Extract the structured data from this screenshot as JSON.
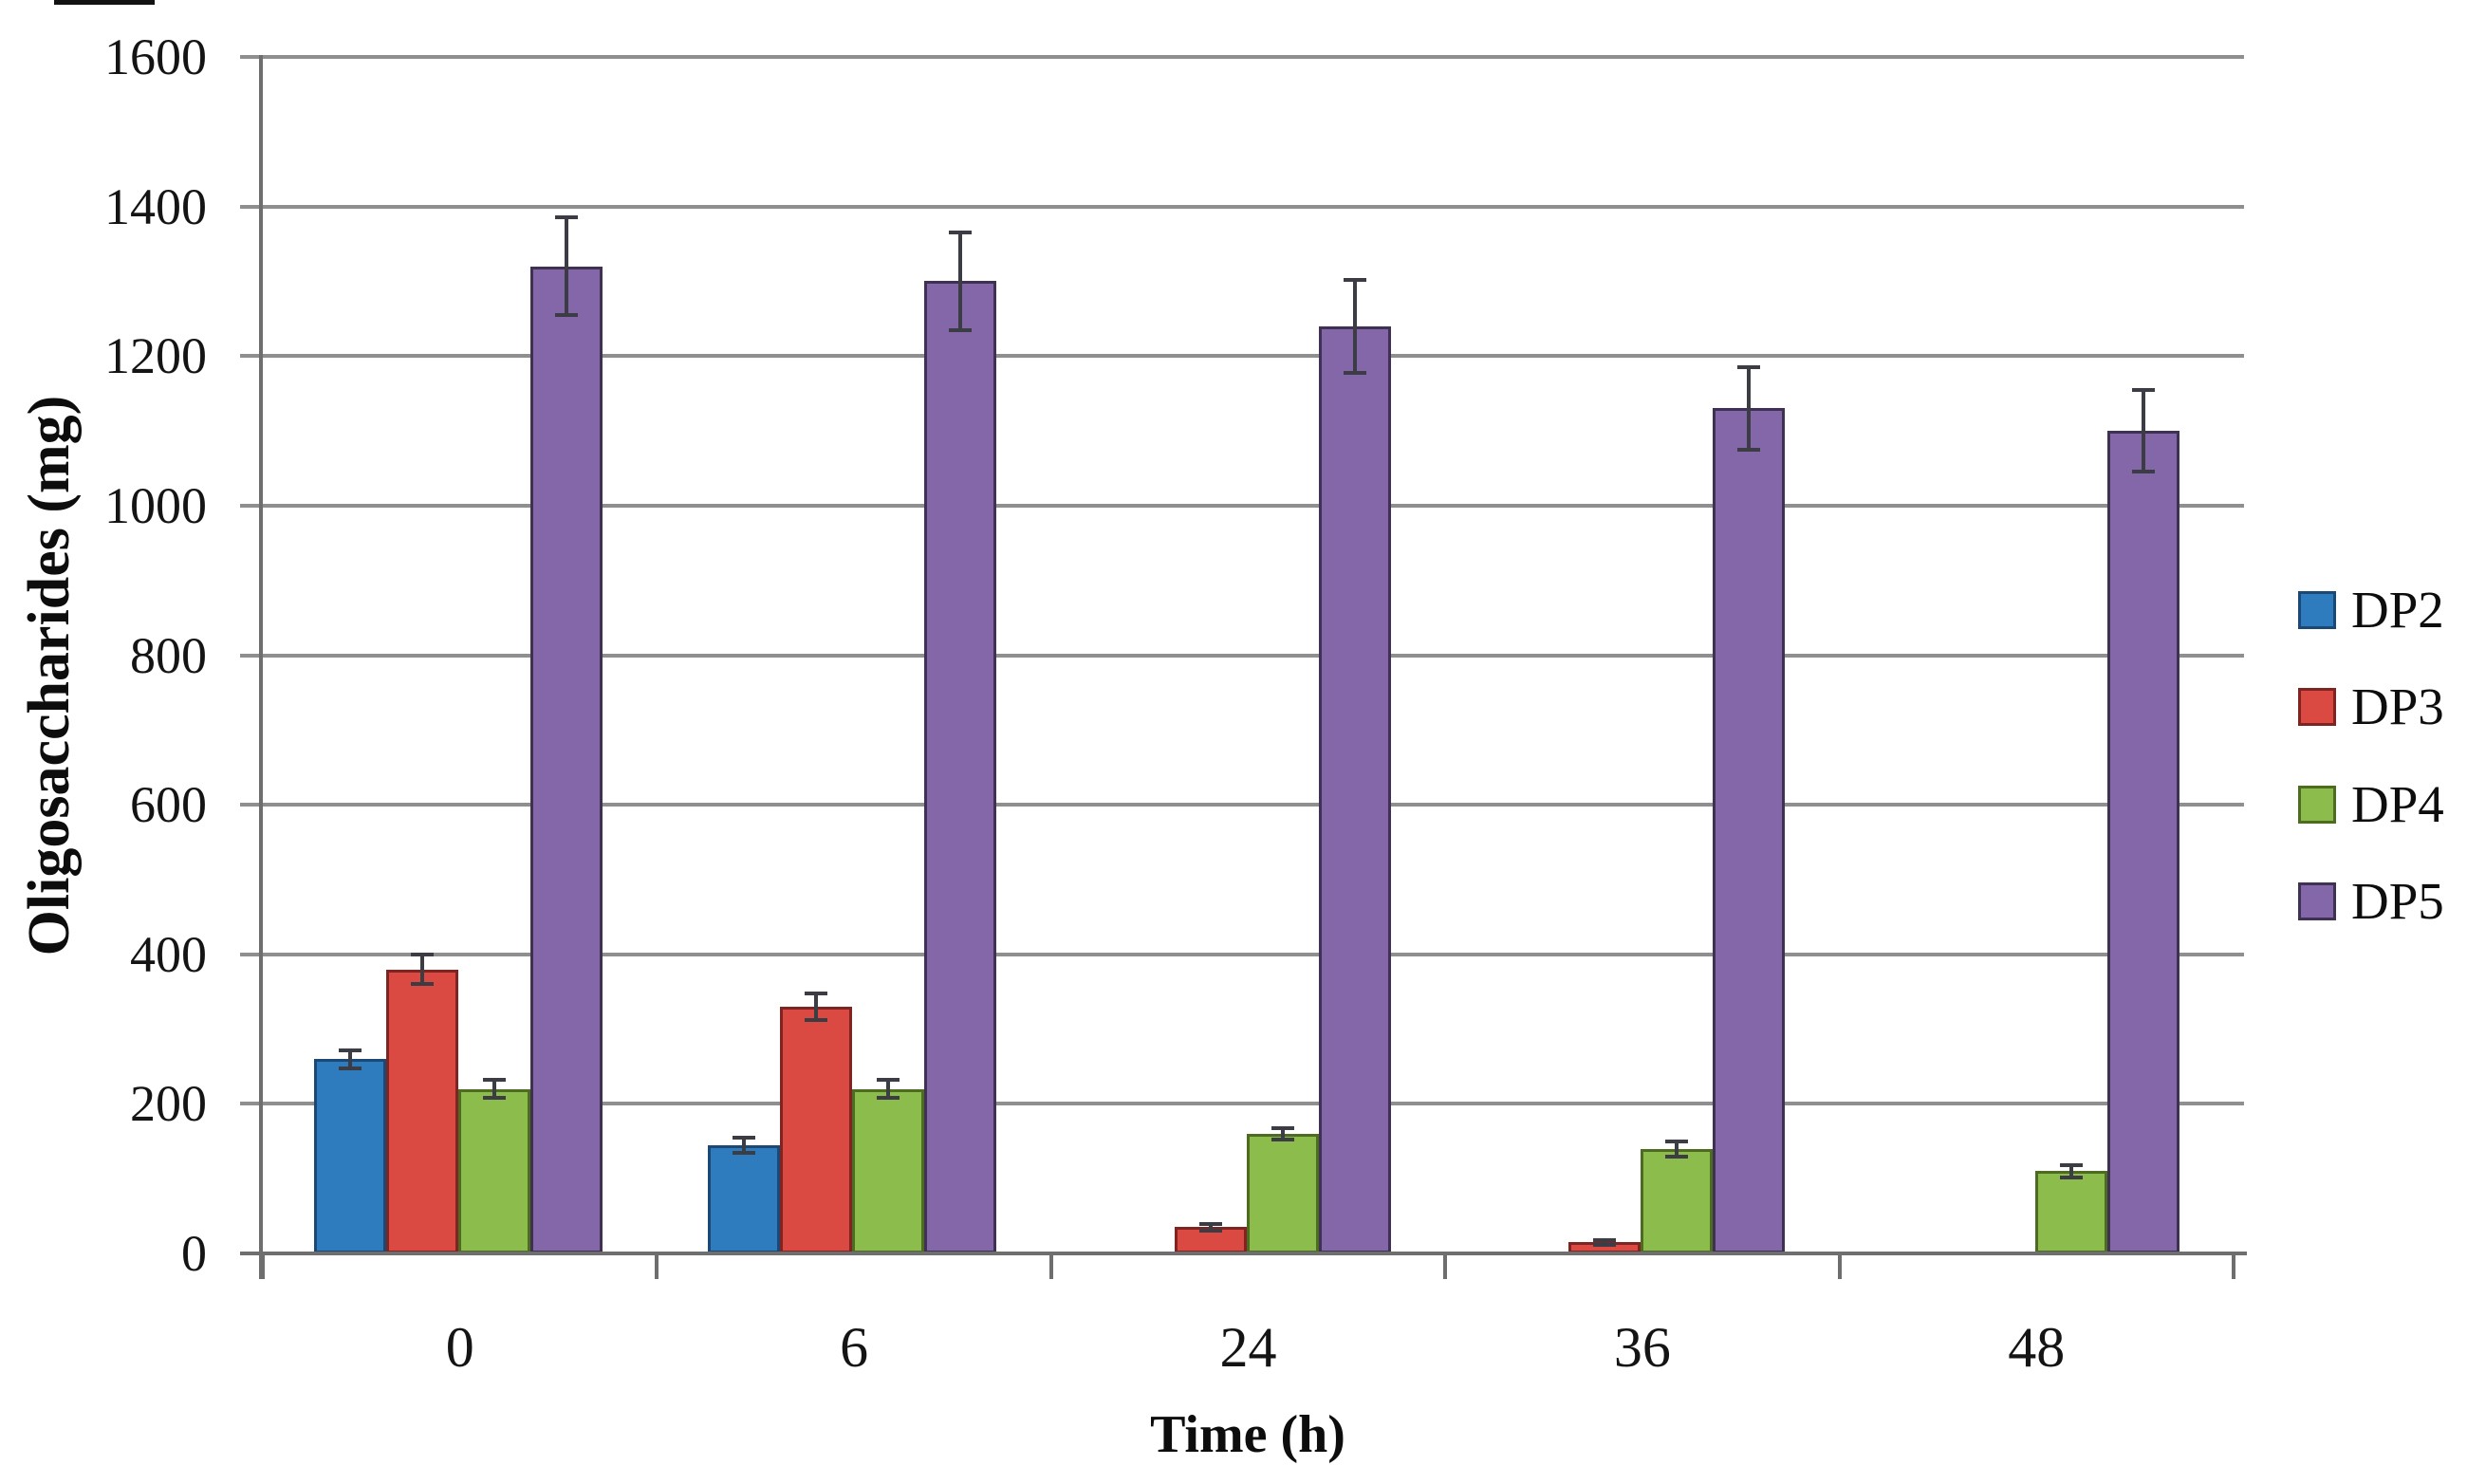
{
  "chart_data": {
    "type": "bar",
    "title": "",
    "xlabel": "Time (h)",
    "ylabel": "Oligosaccharides (mg)",
    "categories": [
      "0",
      "6",
      "24",
      "36",
      "48"
    ],
    "y_ticks": [
      0,
      200,
      400,
      600,
      800,
      1000,
      1200,
      1400,
      1600
    ],
    "ylim": [
      0,
      1600
    ],
    "grid": true,
    "legend_position": "right",
    "series": [
      {
        "name": "DP2",
        "color": "#2e7cbe",
        "border": "#1b4875",
        "values": [
          260,
          145,
          0,
          0,
          0
        ],
        "errors": [
          12,
          10,
          0,
          0,
          0
        ]
      },
      {
        "name": "DP3",
        "color": "#da4a42",
        "border": "#7f2420",
        "values": [
          380,
          330,
          35,
          15,
          0
        ],
        "errors": [
          20,
          18,
          4,
          3,
          0
        ]
      },
      {
        "name": "DP4",
        "color": "#8cbc4c",
        "border": "#4e6b22",
        "values": [
          220,
          220,
          160,
          140,
          110
        ],
        "errors": [
          12,
          12,
          8,
          10,
          8
        ]
      },
      {
        "name": "DP5",
        "color": "#8367a8",
        "border": "#3f3151",
        "values": [
          1320,
          1300,
          1240,
          1130,
          1100
        ],
        "errors": [
          65,
          65,
          62,
          55,
          55
        ]
      }
    ],
    "error_bar_color": "#3c3c44",
    "grid_color": "#8f8f8f",
    "axis_color": "#6e6e6e"
  }
}
